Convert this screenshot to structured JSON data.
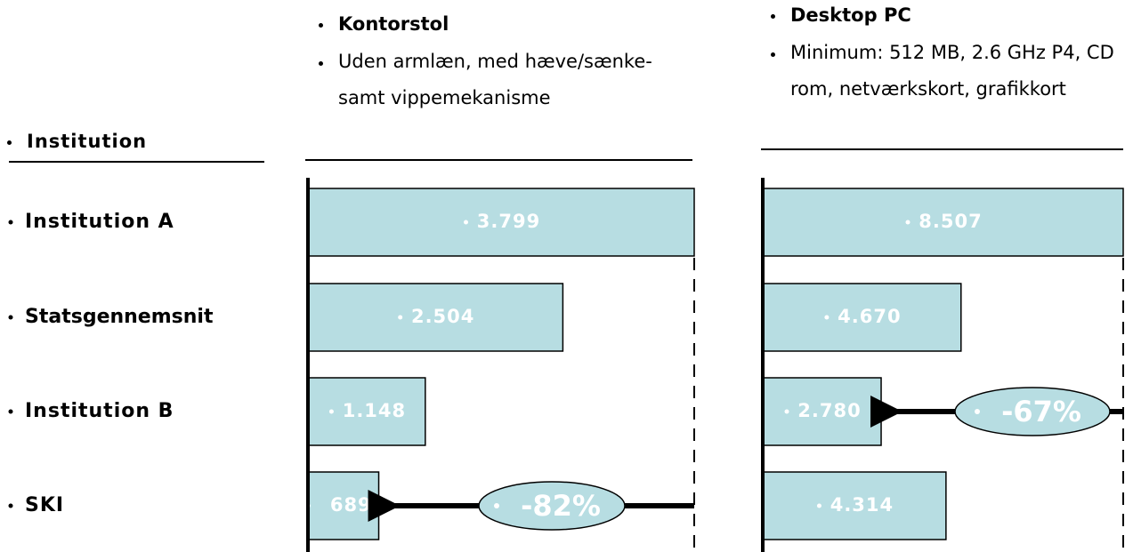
{
  "row_header": "Institution",
  "categories": [
    "Institution A",
    "Statsgennemsnit",
    "Institution B",
    "SKI"
  ],
  "chart_data": [
    {
      "type": "bar",
      "orientation": "horizontal",
      "title": "Kontorstol",
      "subtitle": "Uden armlæn, med hæve/sænke- samt vippemekanisme",
      "values": [
        3799,
        2504,
        1148,
        689
      ],
      "value_labels": [
        "3.799",
        "2.504",
        "1.148",
        "689"
      ],
      "color": "#b7dde2",
      "xlim": [
        0,
        3799
      ],
      "annotation": "-82%"
    },
    {
      "type": "bar",
      "orientation": "horizontal",
      "title": "Desktop PC",
      "subtitle": "Minimum: 512 MB, 2.6 GHz P4, CD rom, netværkskort, grafikkort",
      "values": [
        8507,
        4670,
        2780,
        4314
      ],
      "value_labels": [
        "8.507",
        "4.670",
        "2.780",
        "4.314"
      ],
      "color": "#b7dde2",
      "xlim": [
        0,
        8507
      ],
      "annotation": "-67%"
    }
  ]
}
